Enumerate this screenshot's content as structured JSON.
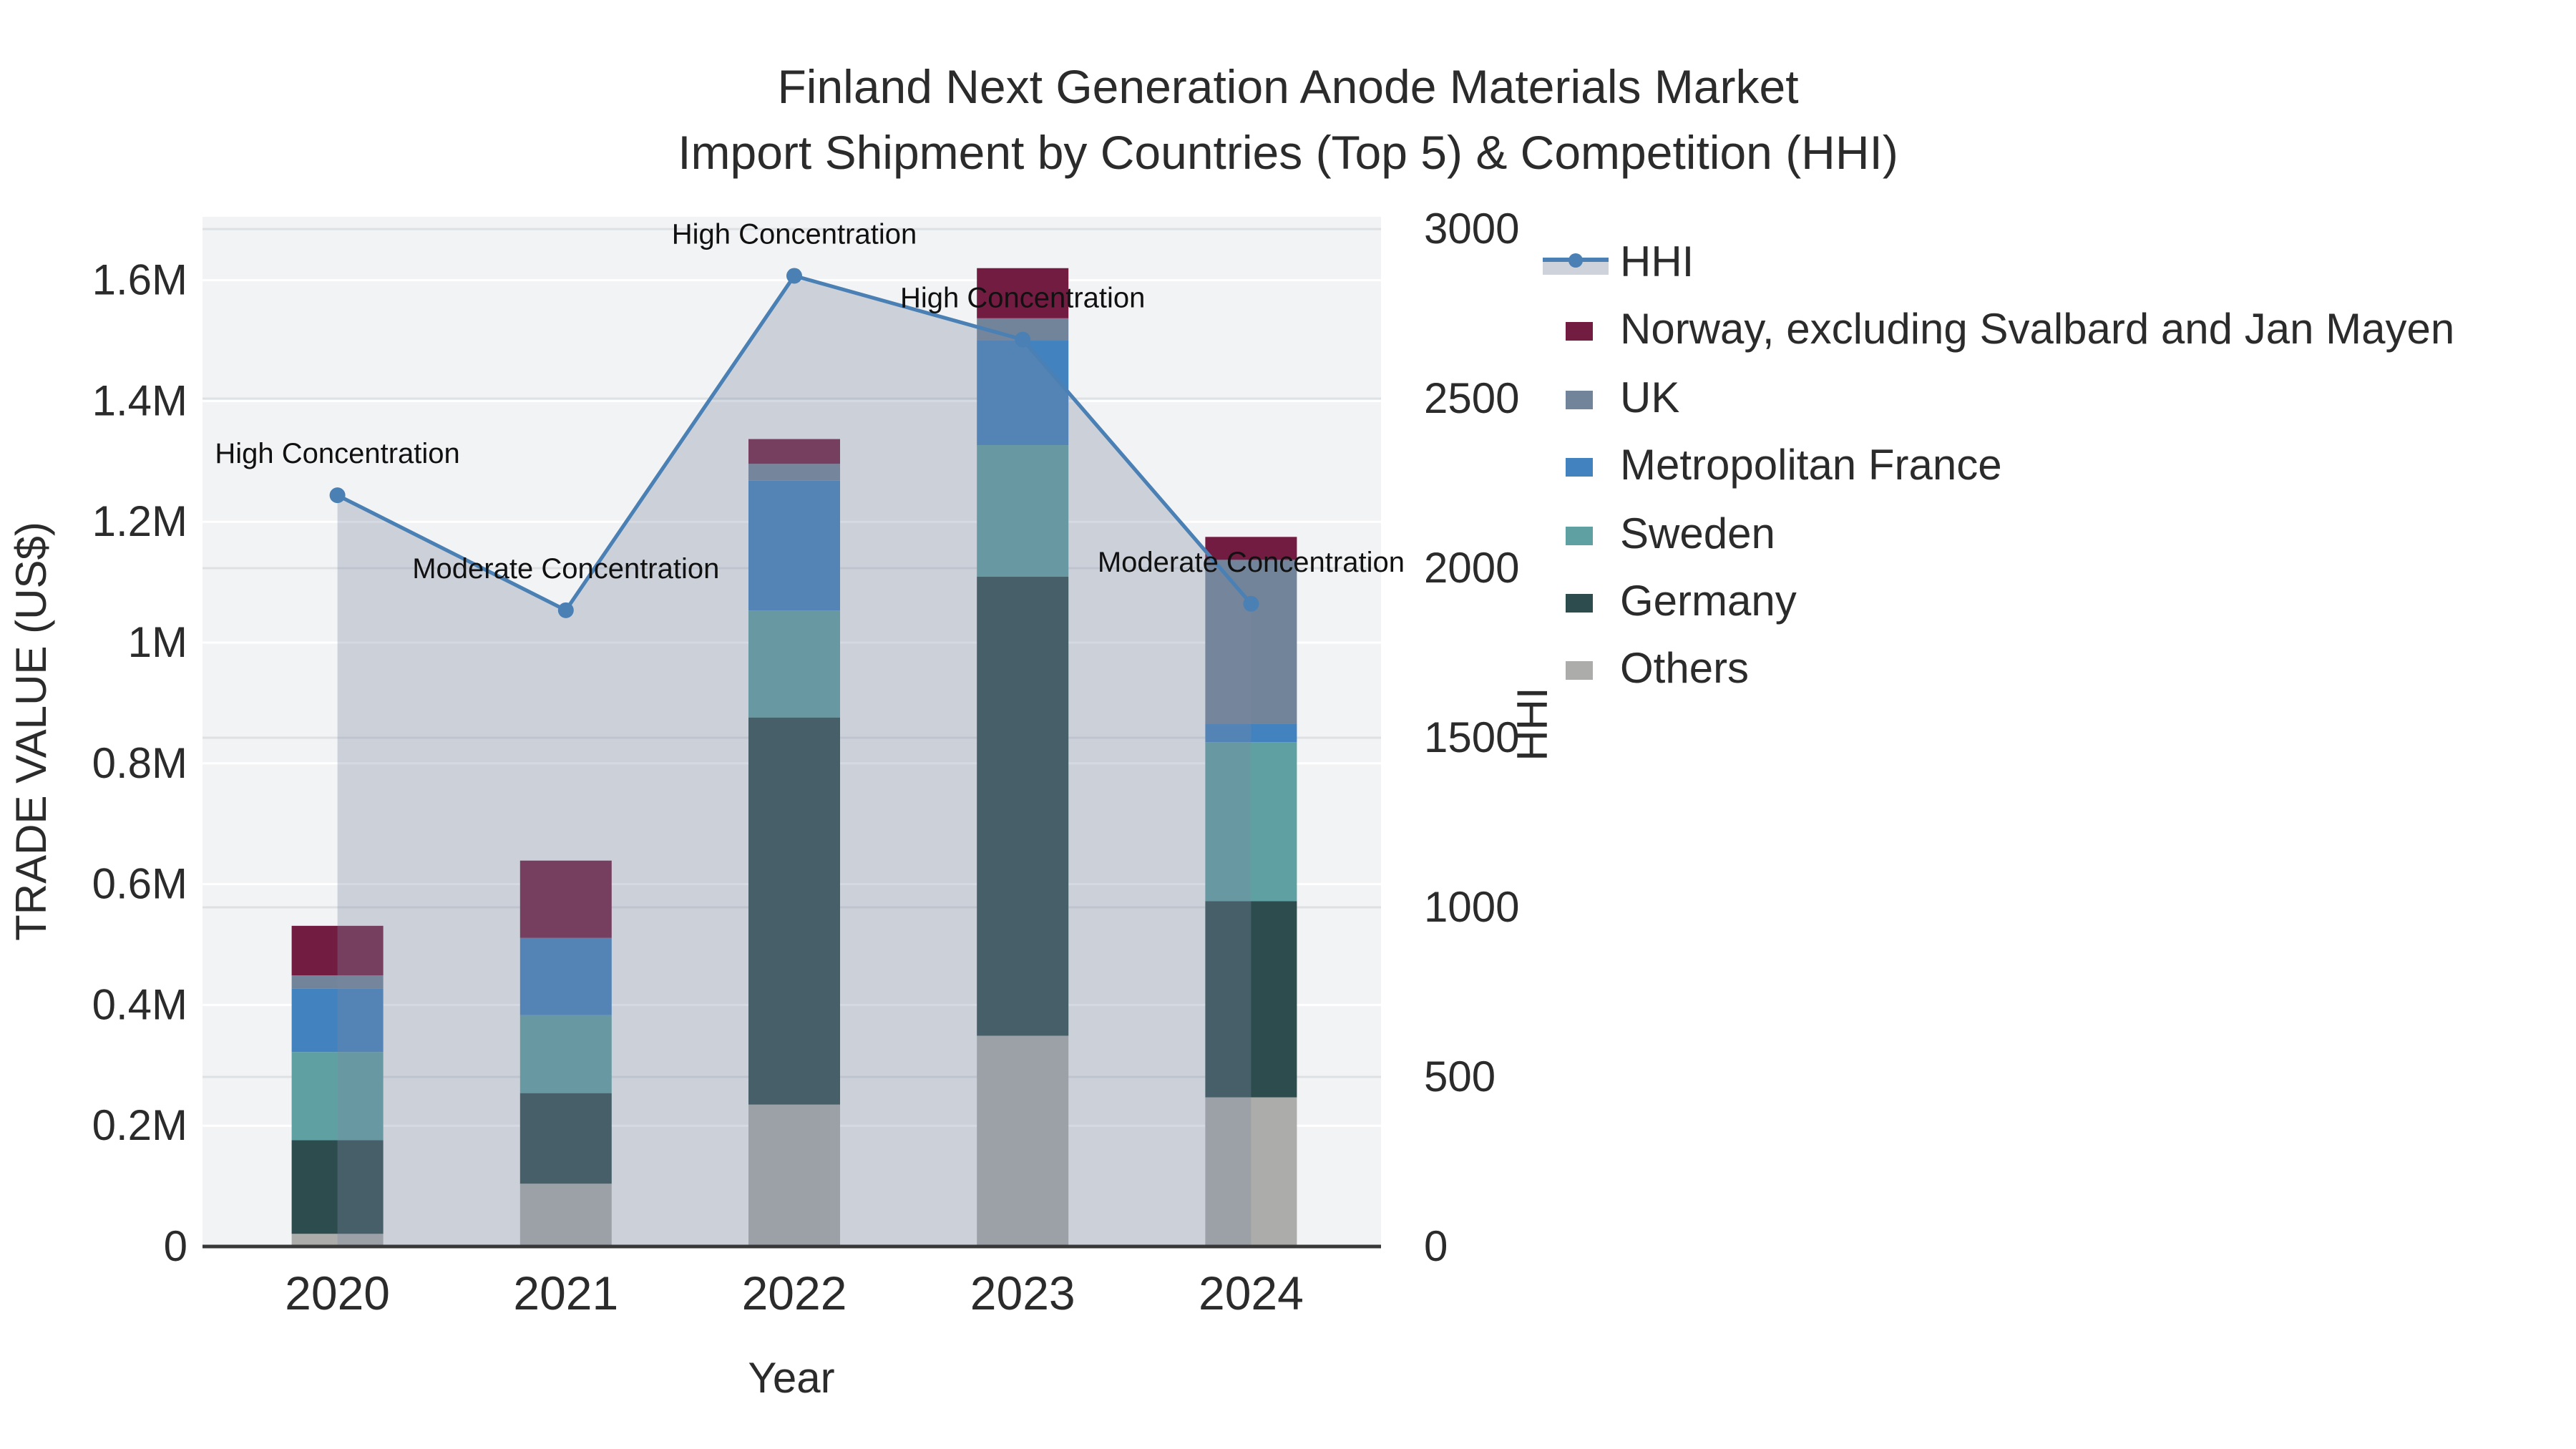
{
  "title": {
    "line1": "Finland Next Generation Anode Materials Market",
    "line2": "Import Shipment by Countries (Top 5) & Competition (HHI)"
  },
  "colors": {
    "plot_bg": "#F2F3F4",
    "grid_left": "#FFFFFF",
    "grid_right": "#DDE1E4",
    "axis_line": "#383838",
    "tick_text": "#2B2B2B",
    "annotation_text": "#111111",
    "hhi_line": "#4A80B4",
    "hhi_fill": "rgba(125,137,161,0.32)",
    "legend_band": "#CDD2DB"
  },
  "legend": {
    "items": [
      {
        "label": "HHI",
        "type": "line",
        "color": "#4A80B4"
      },
      {
        "label": "Norway, excluding Svalbard and Jan Mayen",
        "type": "swatch",
        "color": "#731C41"
      },
      {
        "label": "UK",
        "type": "swatch",
        "color": "#72849A"
      },
      {
        "label": "Metropolitan France",
        "type": "swatch",
        "color": "#4282BE"
      },
      {
        "label": "Sweden",
        "type": "swatch",
        "color": "#5FA1A3"
      },
      {
        "label": "Germany",
        "type": "swatch",
        "color": "#2D4C4E"
      },
      {
        "label": "Others",
        "type": "swatch",
        "color": "#ACACAA"
      }
    ]
  },
  "axes": {
    "left": {
      "title": "TRADE VALUE (US$)",
      "max": 1705000,
      "ticks": [
        {
          "label": "0",
          "value": 0
        },
        {
          "label": "0.2M",
          "value": 200000
        },
        {
          "label": "0.4M",
          "value": 400000
        },
        {
          "label": "0.6M",
          "value": 600000
        },
        {
          "label": "0.8M",
          "value": 800000
        },
        {
          "label": "1M",
          "value": 1000000
        },
        {
          "label": "1.2M",
          "value": 1200000
        },
        {
          "label": "1.4M",
          "value": 1400000
        },
        {
          "label": "1.6M",
          "value": 1600000
        }
      ]
    },
    "right": {
      "title": "HHI",
      "max": 3036,
      "ticks": [
        {
          "label": "0",
          "value": 0
        },
        {
          "label": "500",
          "value": 500
        },
        {
          "label": "1000",
          "value": 1000
        },
        {
          "label": "1500",
          "value": 1500
        },
        {
          "label": "2000",
          "value": 2000
        },
        {
          "label": "2500",
          "value": 2500
        },
        {
          "label": "3000",
          "value": 3000
        }
      ]
    },
    "x": {
      "title": "Year",
      "categories": [
        "2020",
        "2021",
        "2022",
        "2023",
        "2024"
      ]
    }
  },
  "chart_data": {
    "type": "combo",
    "subtype": "stacked-bar + line",
    "categories": [
      "2020",
      "2021",
      "2022",
      "2023",
      "2024"
    ],
    "bar_series": [
      {
        "name": "Others",
        "color": "#ACACAA",
        "values": [
          21000,
          104000,
          235000,
          349000,
          247000
        ]
      },
      {
        "name": "Germany",
        "color": "#2D4C4E",
        "values": [
          155000,
          150000,
          641000,
          760000,
          325000
        ]
      },
      {
        "name": "Sweden",
        "color": "#5FA1A3",
        "values": [
          146000,
          129000,
          177000,
          218000,
          263000
        ]
      },
      {
        "name": "Metropolitan France",
        "color": "#4282BE",
        "values": [
          105000,
          128000,
          215000,
          173000,
          31000
        ]
      },
      {
        "name": "UK",
        "color": "#72849A",
        "values": [
          22000,
          0,
          28000,
          37000,
          271000
        ]
      },
      {
        "name": "Norway, excluding Svalbard and Jan Mayen",
        "color": "#731C41",
        "values": [
          82000,
          128000,
          41000,
          83000,
          38000
        ]
      }
    ],
    "bar_totals": [
      531000,
      639000,
      1337000,
      1620000,
      1175000
    ],
    "line_series": {
      "name": "HHI",
      "axis": "right",
      "color": "#4A80B4",
      "fill": "rgba(125,137,161,0.32)",
      "values": [
        2215,
        1876,
        2862,
        2674,
        1895
      ]
    },
    "annotations": [
      {
        "category": "2020",
        "text": "High Concentration"
      },
      {
        "category": "2021",
        "text": "Moderate Concentration"
      },
      {
        "category": "2022",
        "text": "High Concentration"
      },
      {
        "category": "2023",
        "text": "High Concentration"
      },
      {
        "category": "2024",
        "text": "Moderate Concentration"
      }
    ],
    "title": "Finland Next Generation Anode Materials Market — Import Shipment by Countries (Top 5) & Competition (HHI)",
    "xlabel": "Year",
    "ylabel": "TRADE VALUE (US$)",
    "y2label": "HHI",
    "ylim": [
      0,
      1705000
    ],
    "y2lim": [
      0,
      3036
    ],
    "grid": true,
    "legend_position": "right"
  }
}
